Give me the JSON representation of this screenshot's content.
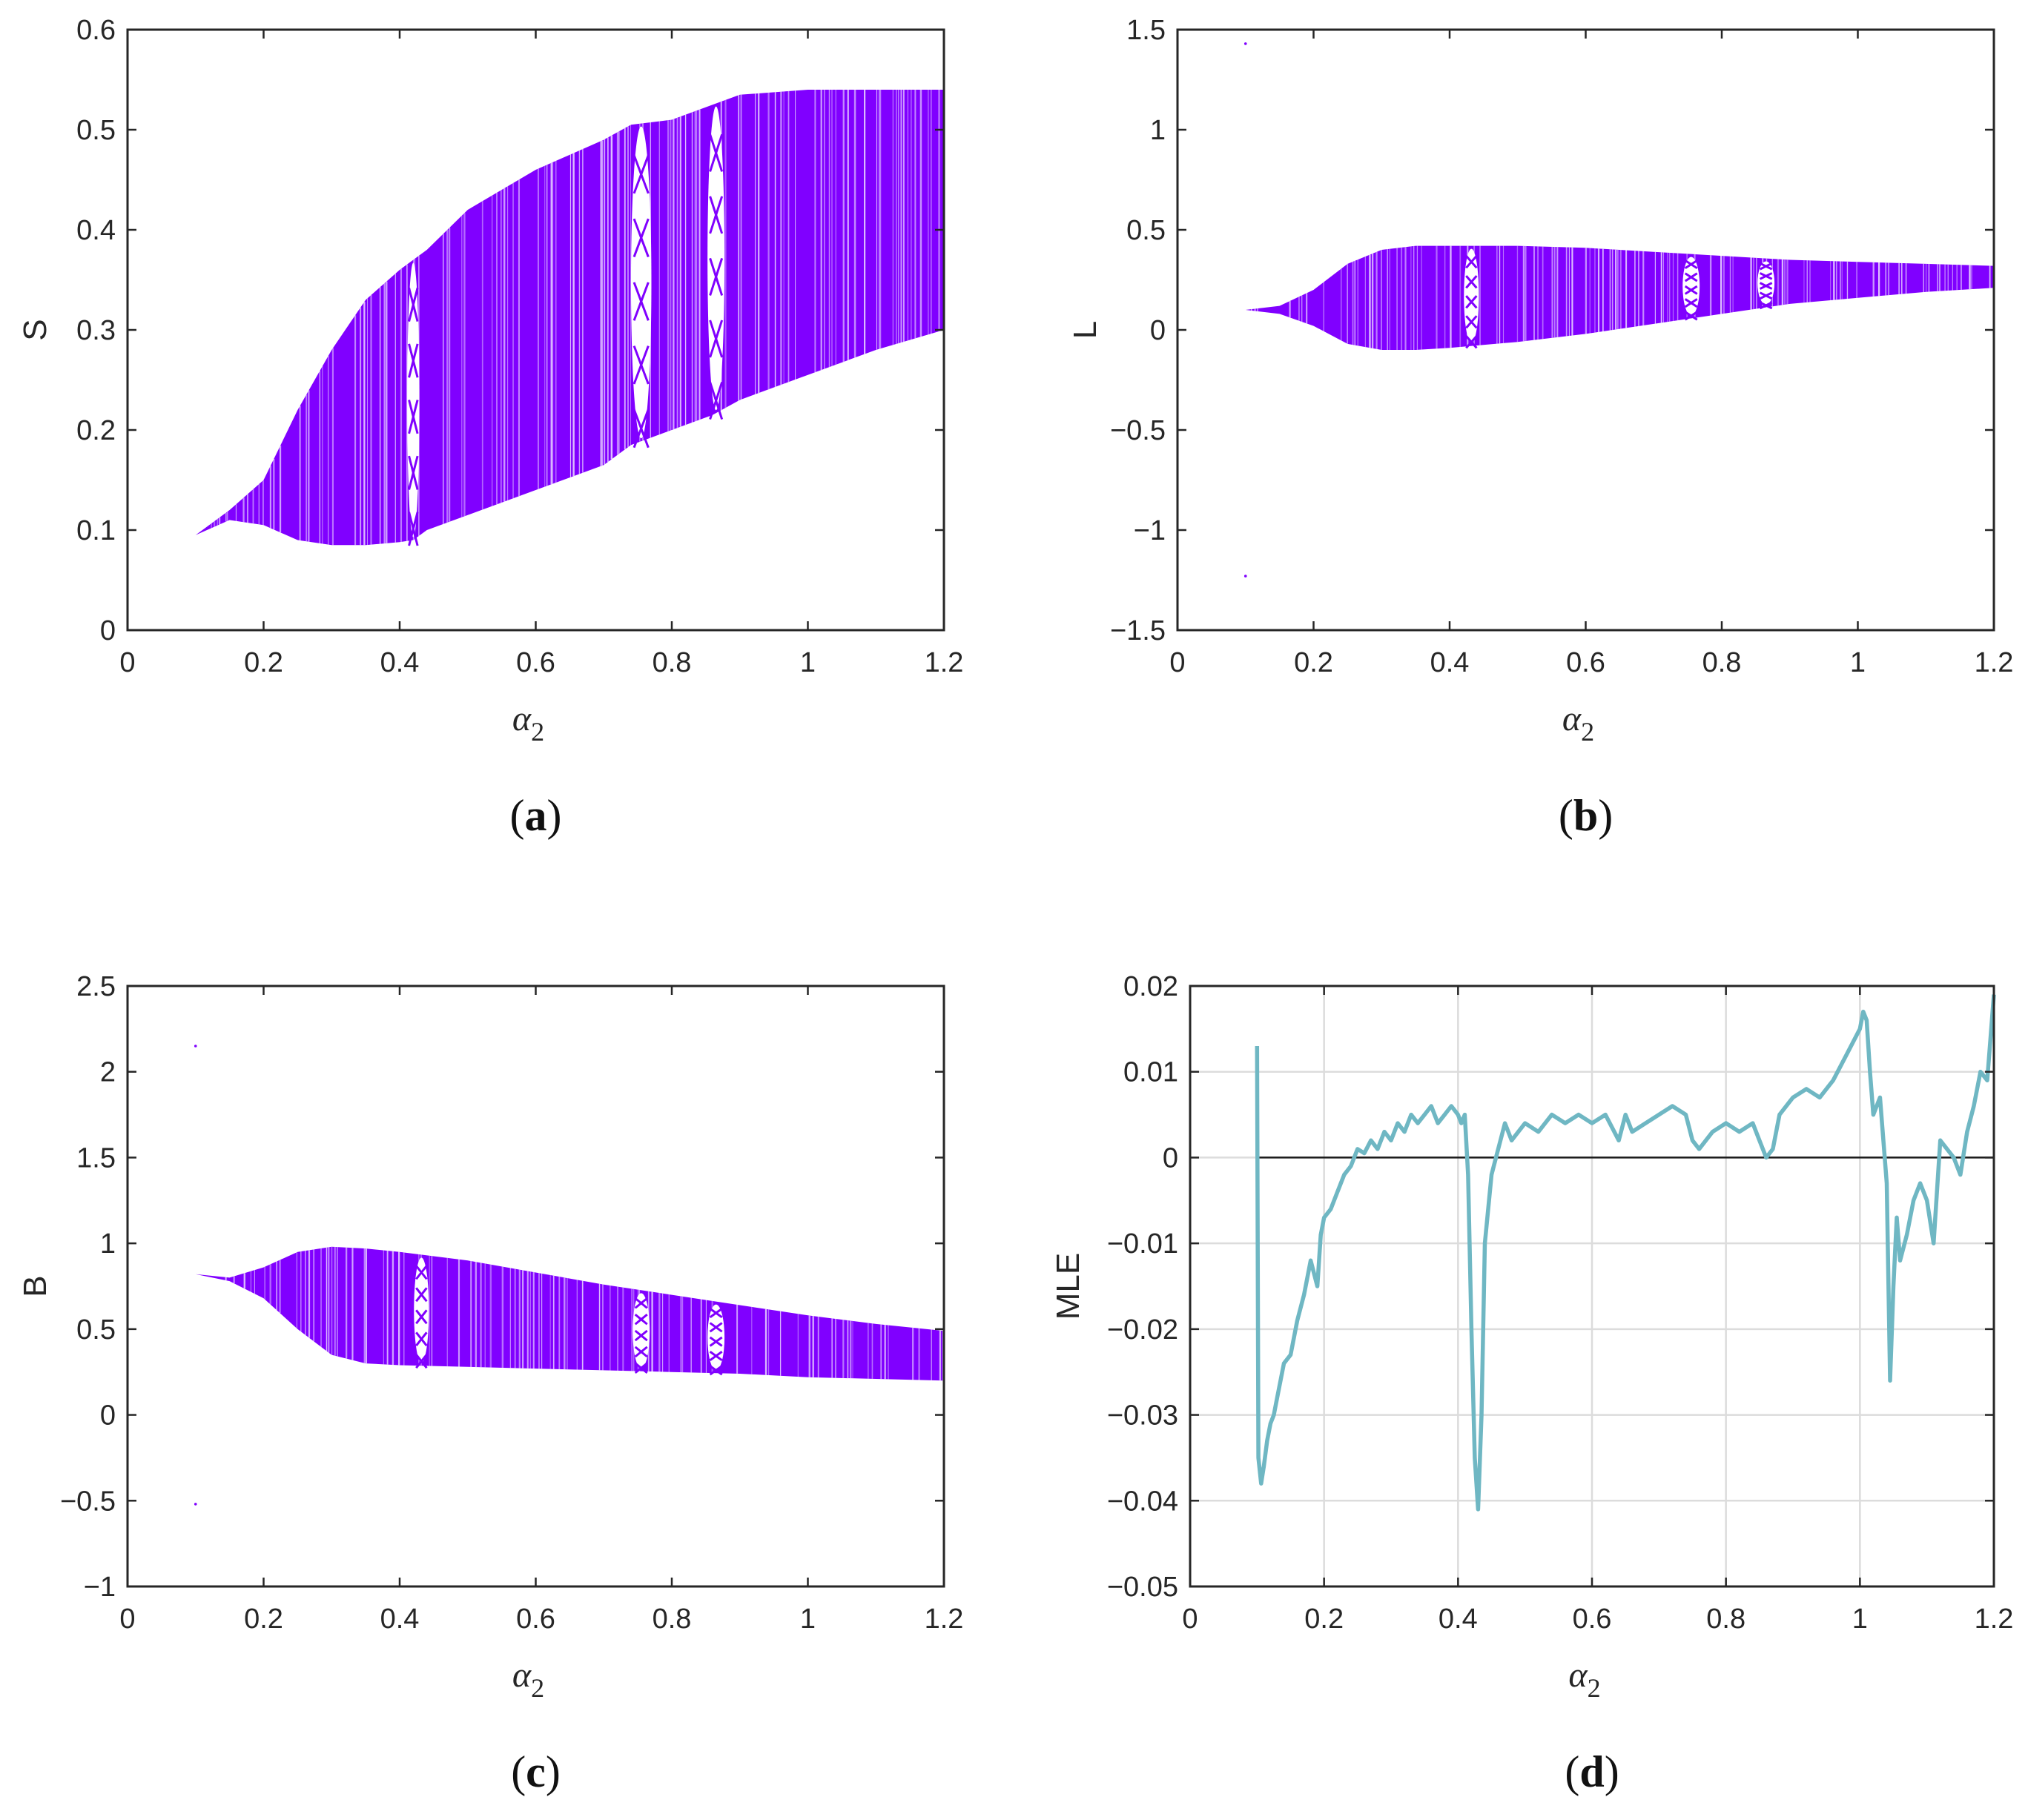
{
  "chart_data": [
    {
      "type": "scatter",
      "subtype": "bifurcation-diagram",
      "panel": "a",
      "caption": "(a)",
      "caption_letter": "a",
      "xlabel": "α2",
      "xlabel_main": "α",
      "xlabel_sub": "2",
      "ylabel": "S",
      "xlim": [
        0,
        1.2
      ],
      "ylim": [
        0,
        0.6
      ],
      "xticks": [
        0,
        0.2,
        0.4,
        0.6,
        0.8,
        1,
        1.2
      ],
      "xtick_labels": [
        "0",
        "0.2",
        "0.4",
        "0.6",
        "0.8",
        "1",
        "1.2"
      ],
      "yticks": [
        0,
        0.1,
        0.2,
        0.3,
        0.4,
        0.5,
        0.6
      ],
      "ytick_labels": [
        "0",
        "0.1",
        "0.2",
        "0.3",
        "0.4",
        "0.5",
        "0.6"
      ],
      "grid": false,
      "color": "#8000ff",
      "envelope": {
        "x": [
          0.1,
          0.15,
          0.2,
          0.25,
          0.3,
          0.35,
          0.4,
          0.42,
          0.44,
          0.5,
          0.6,
          0.7,
          0.74,
          0.8,
          0.86,
          0.9,
          1.0,
          1.1,
          1.2
        ],
        "upper": [
          0.095,
          0.12,
          0.15,
          0.22,
          0.28,
          0.33,
          0.36,
          0.37,
          0.38,
          0.42,
          0.46,
          0.49,
          0.505,
          0.51,
          0.525,
          0.535,
          0.54,
          0.54,
          0.54
        ],
        "lower": [
          0.095,
          0.11,
          0.105,
          0.09,
          0.085,
          0.085,
          0.088,
          0.09,
          0.1,
          0.115,
          0.14,
          0.165,
          0.185,
          0.2,
          0.215,
          0.23,
          0.255,
          0.28,
          0.3
        ]
      },
      "windows": [
        {
          "x": 0.42,
          "width": 0.018
        },
        {
          "x": 0.755,
          "width": 0.03
        },
        {
          "x": 0.865,
          "width": 0.025
        }
      ]
    },
    {
      "type": "scatter",
      "subtype": "bifurcation-diagram",
      "panel": "b",
      "caption": "(b)",
      "caption_letter": "b",
      "xlabel": "α2",
      "xlabel_main": "α",
      "xlabel_sub": "2",
      "ylabel": "L",
      "xlim": [
        0,
        1.2
      ],
      "ylim": [
        -1.5,
        1.5
      ],
      "xticks": [
        0,
        0.2,
        0.4,
        0.6,
        0.8,
        1,
        1.2
      ],
      "xtick_labels": [
        "0",
        "0.2",
        "0.4",
        "0.6",
        "0.8",
        "1",
        "1.2"
      ],
      "yticks": [
        -1.5,
        -1,
        -0.5,
        0,
        0.5,
        1,
        1.5
      ],
      "ytick_labels": [
        "−1.5",
        "−1",
        "−0.5",
        "0",
        "0.5",
        "1",
        "1.5"
      ],
      "grid": false,
      "color": "#8000ff",
      "envelope": {
        "x": [
          0.1,
          0.15,
          0.2,
          0.25,
          0.3,
          0.35,
          0.4,
          0.5,
          0.6,
          0.7,
          0.8,
          0.9,
          1.0,
          1.1,
          1.2
        ],
        "upper": [
          0.1,
          0.12,
          0.2,
          0.33,
          0.4,
          0.42,
          0.42,
          0.42,
          0.41,
          0.39,
          0.37,
          0.35,
          0.34,
          0.33,
          0.32
        ],
        "lower": [
          0.1,
          0.08,
          0.02,
          -0.07,
          -0.1,
          -0.1,
          -0.09,
          -0.06,
          -0.02,
          0.03,
          0.08,
          0.13,
          0.16,
          0.19,
          0.21
        ]
      },
      "windows": [
        {
          "x": 0.432,
          "width": 0.022
        },
        {
          "x": 0.755,
          "width": 0.025
        },
        {
          "x": 0.865,
          "width": 0.025
        }
      ],
      "outliers": [
        {
          "x": 0.1,
          "y": 1.43
        },
        {
          "x": 0.1,
          "y": -1.23
        }
      ]
    },
    {
      "type": "scatter",
      "subtype": "bifurcation-diagram",
      "panel": "c",
      "caption": "(c)",
      "caption_letter": "c",
      "xlabel": "α2",
      "xlabel_main": "α",
      "xlabel_sub": "2",
      "ylabel": "B",
      "xlim": [
        0,
        1.2
      ],
      "ylim": [
        -1,
        2.5
      ],
      "xticks": [
        0,
        0.2,
        0.4,
        0.6,
        0.8,
        1,
        1.2
      ],
      "xtick_labels": [
        "0",
        "0.2",
        "0.4",
        "0.6",
        "0.8",
        "1",
        "1.2"
      ],
      "yticks": [
        -1,
        -0.5,
        0,
        0.5,
        1,
        1.5,
        2,
        2.5
      ],
      "ytick_labels": [
        "−1",
        "−0.5",
        "0",
        "0.5",
        "1",
        "1.5",
        "2",
        "2.5"
      ],
      "grid": false,
      "color": "#8000ff",
      "envelope": {
        "x": [
          0.1,
          0.15,
          0.2,
          0.25,
          0.3,
          0.35,
          0.4,
          0.5,
          0.6,
          0.7,
          0.8,
          0.9,
          1.0,
          1.1,
          1.2
        ],
        "upper": [
          0.82,
          0.8,
          0.86,
          0.95,
          0.98,
          0.97,
          0.95,
          0.9,
          0.83,
          0.76,
          0.7,
          0.64,
          0.58,
          0.53,
          0.49
        ],
        "lower": [
          0.82,
          0.78,
          0.68,
          0.5,
          0.35,
          0.3,
          0.29,
          0.28,
          0.27,
          0.26,
          0.25,
          0.24,
          0.22,
          0.21,
          0.2
        ]
      },
      "windows": [
        {
          "x": 0.432,
          "width": 0.022
        },
        {
          "x": 0.755,
          "width": 0.025
        },
        {
          "x": 0.865,
          "width": 0.025
        }
      ],
      "outliers": [
        {
          "x": 0.1,
          "y": 2.15
        },
        {
          "x": 0.1,
          "y": -0.52
        }
      ]
    },
    {
      "type": "line",
      "panel": "d",
      "caption": "(d)",
      "caption_letter": "d",
      "xlabel": "α2",
      "xlabel_main": "α",
      "xlabel_sub": "2",
      "ylabel": "MLE",
      "xlim": [
        0,
        1.2
      ],
      "ylim": [
        -0.05,
        0.02
      ],
      "xticks": [
        0,
        0.2,
        0.4,
        0.6,
        0.8,
        1,
        1.2
      ],
      "xtick_labels": [
        "0",
        "0.2",
        "0.4",
        "0.6",
        "0.8",
        "1",
        "1.2"
      ],
      "yticks": [
        -0.05,
        -0.04,
        -0.03,
        -0.02,
        -0.01,
        0,
        0.01,
        0.02
      ],
      "ytick_labels": [
        "−0.05",
        "−0.04",
        "−0.03",
        "−0.02",
        "−0.01",
        "0",
        "0.01",
        "0.02"
      ],
      "grid": true,
      "zero_line": true,
      "series": [
        {
          "name": "MLE",
          "color": "#6fb7c3",
          "x": [
            0.1,
            0.102,
            0.106,
            0.11,
            0.115,
            0.12,
            0.125,
            0.13,
            0.14,
            0.15,
            0.16,
            0.17,
            0.18,
            0.19,
            0.195,
            0.2,
            0.21,
            0.22,
            0.23,
            0.24,
            0.25,
            0.26,
            0.27,
            0.28,
            0.29,
            0.3,
            0.31,
            0.32,
            0.33,
            0.34,
            0.35,
            0.36,
            0.37,
            0.38,
            0.39,
            0.4,
            0.405,
            0.41,
            0.415,
            0.42,
            0.425,
            0.43,
            0.435,
            0.44,
            0.45,
            0.46,
            0.47,
            0.48,
            0.49,
            0.5,
            0.52,
            0.54,
            0.56,
            0.58,
            0.6,
            0.62,
            0.64,
            0.65,
            0.66,
            0.68,
            0.7,
            0.72,
            0.74,
            0.75,
            0.76,
            0.78,
            0.8,
            0.82,
            0.84,
            0.85,
            0.86,
            0.87,
            0.88,
            0.9,
            0.92,
            0.94,
            0.96,
            0.98,
            1.0,
            1.005,
            1.01,
            1.015,
            1.02,
            1.03,
            1.04,
            1.045,
            1.05,
            1.055,
            1.06,
            1.07,
            1.08,
            1.09,
            1.1,
            1.11,
            1.12,
            1.13,
            1.14,
            1.15,
            1.16,
            1.17,
            1.18,
            1.19,
            1.2
          ],
          "y": [
            0.013,
            -0.035,
            -0.038,
            -0.036,
            -0.033,
            -0.031,
            -0.03,
            -0.028,
            -0.024,
            -0.023,
            -0.019,
            -0.016,
            -0.012,
            -0.015,
            -0.009,
            -0.007,
            -0.006,
            -0.004,
            -0.002,
            -0.001,
            0.001,
            0.0005,
            0.002,
            0.001,
            0.003,
            0.002,
            0.004,
            0.003,
            0.005,
            0.004,
            0.005,
            0.006,
            0.004,
            0.005,
            0.006,
            0.005,
            0.004,
            0.005,
            -0.002,
            -0.02,
            -0.035,
            -0.041,
            -0.03,
            -0.01,
            -0.002,
            0.001,
            0.004,
            0.002,
            0.003,
            0.004,
            0.003,
            0.005,
            0.004,
            0.005,
            0.004,
            0.005,
            0.002,
            0.005,
            0.003,
            0.004,
            0.005,
            0.006,
            0.005,
            0.002,
            0.001,
            0.003,
            0.004,
            0.003,
            0.004,
            0.002,
            0.0,
            0.001,
            0.005,
            0.007,
            0.008,
            0.007,
            0.009,
            0.012,
            0.015,
            0.017,
            0.016,
            0.01,
            0.005,
            0.007,
            -0.003,
            -0.026,
            -0.015,
            -0.007,
            -0.012,
            -0.009,
            -0.005,
            -0.003,
            -0.005,
            -0.01,
            0.002,
            0.001,
            0.0,
            -0.002,
            0.003,
            0.006,
            0.01,
            0.009,
            0.019
          ]
        }
      ]
    }
  ]
}
